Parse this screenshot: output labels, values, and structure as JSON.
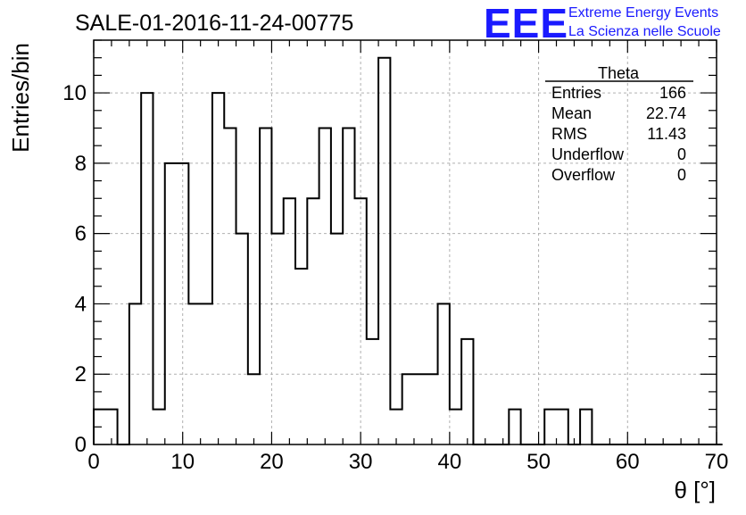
{
  "chart_data": {
    "type": "histogram",
    "title": "SALE-01-2016-11-24-00775",
    "xlabel": "θ [°]",
    "ylabel": "Entries/bin",
    "xlim": [
      0,
      70
    ],
    "ylim": [
      0,
      11.5
    ],
    "xticks": [
      0,
      10,
      20,
      30,
      40,
      50,
      60,
      70
    ],
    "yticks": [
      0,
      2,
      4,
      6,
      8,
      10
    ],
    "grid": true,
    "bin_width": 1.3333,
    "bin_values": [
      1,
      1,
      0,
      4,
      10,
      1,
      8,
      8,
      4,
      4,
      10,
      9,
      6,
      2,
      9,
      6,
      7,
      5,
      7,
      9,
      6,
      9,
      7,
      3,
      11,
      1,
      2,
      2,
      2,
      4,
      1,
      3,
      0,
      0,
      0,
      1,
      0,
      0,
      1,
      1,
      0,
      1,
      0,
      0,
      0,
      0,
      0,
      0,
      0,
      0,
      0,
      0,
      0
    ],
    "stats": {
      "title": "Theta",
      "rows": [
        {
          "label": "Entries",
          "value": "166"
        },
        {
          "label": "Mean",
          "value": "22.74"
        },
        {
          "label": "RMS",
          "value": "11.43"
        },
        {
          "label": "Underflow",
          "value": "0"
        },
        {
          "label": "Overflow",
          "value": "0"
        }
      ]
    }
  },
  "logo": {
    "mark": "EEE",
    "line1": "Extreme Energy Events",
    "line2": "La Scienza nelle Scuole",
    "color": "#1a1aff"
  }
}
